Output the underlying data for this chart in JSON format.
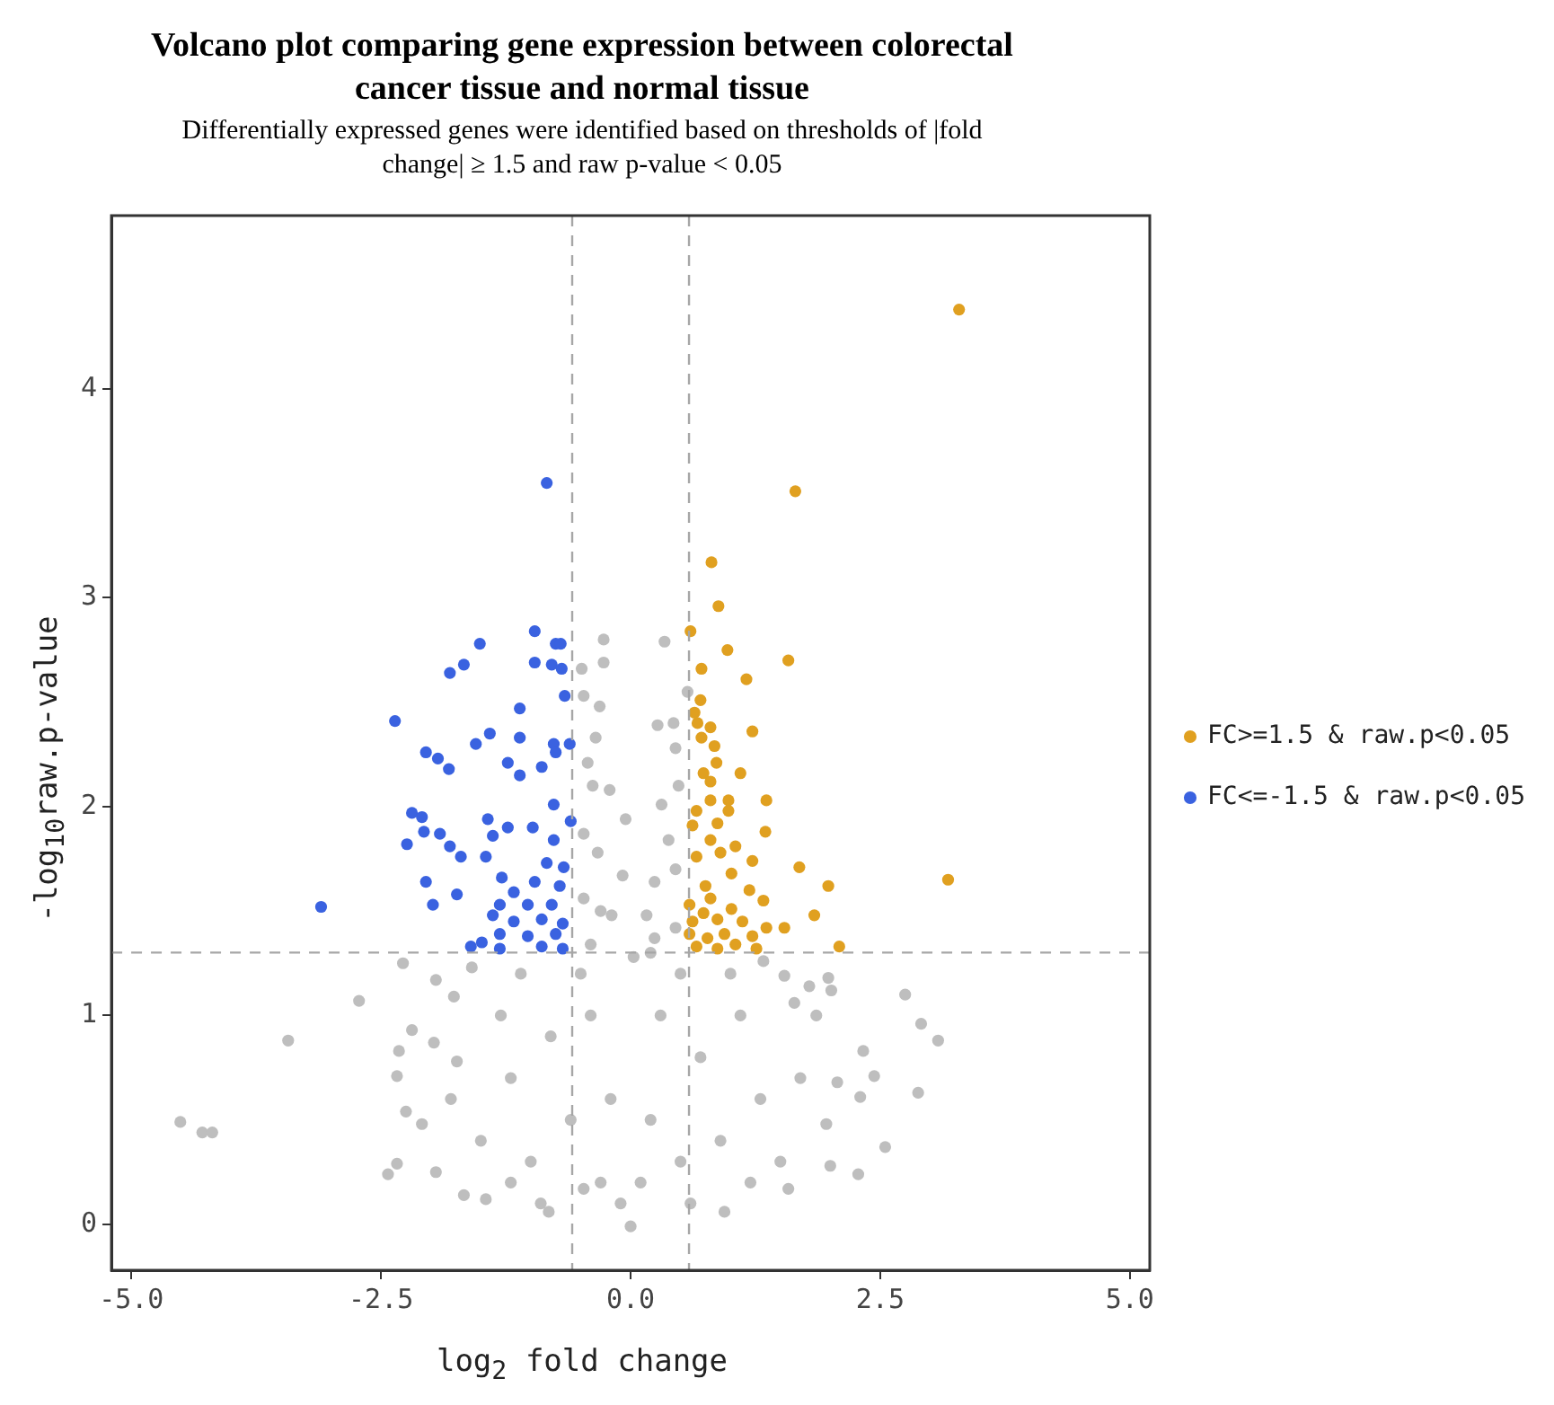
{
  "chart_data": {
    "type": "scatter",
    "title": "Volcano plot comparing gene expression between colorectal cancer tissue and normal tissue",
    "subtitle": "Differentially expressed genes were identified based on thresholds of |fold change| ≥ 1.5 and raw p-value < 0.05",
    "xlabel": "log$_{2}$ fold change",
    "ylabel": "-log$_{10}$raw.p-value",
    "xlim": [
      -5.2,
      5.2
    ],
    "ylim": [
      -0.22,
      4.83
    ],
    "xticks": [
      {
        "value": -5,
        "label": "-5.0"
      },
      {
        "value": -2.5,
        "label": "-2.5"
      },
      {
        "value": 0,
        "label": "0.0"
      },
      {
        "value": 2.5,
        "label": "2.5"
      },
      {
        "value": 5,
        "label": "5.0"
      }
    ],
    "yticks": [
      0,
      1,
      2,
      3,
      4
    ],
    "grid": false,
    "legend": "right",
    "marker": "circle",
    "ref_lines": [
      {
        "axis": "x",
        "value": -0.585,
        "color": "#a6a6a6",
        "line_style": "dashed"
      },
      {
        "axis": "x",
        "value": 0.585,
        "color": "#a6a6a6",
        "line_style": "dashed"
      },
      {
        "axis": "y",
        "value": 1.301,
        "color": "#a6a6a6",
        "line_style": "dashed"
      }
    ],
    "series": [
      {
        "color": "#bebebe",
        "x": [
          -4.51,
          -4.29,
          -4.19,
          -3.43,
          -2.72,
          -2.28,
          -2.19,
          -2.32,
          -2.34,
          -2.43,
          -2.34,
          -1.95,
          -2.25,
          -1.95,
          -1.59,
          -1.77,
          -1.97,
          -2.09,
          -1.74,
          -1.67,
          2.75,
          2.91,
          3.08,
          2.88,
          2.33,
          2.44,
          2.3,
          2.07,
          2.55,
          2.28,
          1.98,
          2.01,
          1.79,
          1.64,
          1.86,
          1.54,
          1.33,
          1.96,
          2.0,
          1.58,
          0.94,
          0.0,
          -0.82,
          -1.45,
          -0.47,
          -0.27,
          0.34,
          -0.49,
          -0.27,
          -0.47,
          -0.31,
          0.57,
          0.27,
          0.43,
          -0.35,
          -0.43,
          -0.38,
          -0.21,
          -0.05,
          0.45,
          0.48,
          0.31,
          0.38,
          -0.47,
          -0.33,
          -0.08,
          0.24,
          0.45,
          -0.47,
          -0.19,
          0.16,
          0.03,
          -0.4,
          0.24,
          0.45,
          -1.5,
          -1.2,
          -1.0,
          -0.8,
          -0.6,
          -0.4,
          -0.3,
          -0.2,
          0.2,
          0.3,
          0.5,
          0.7,
          0.9,
          1.1,
          1.3,
          1.5,
          -1.3,
          -1.8,
          1.7,
          0.1,
          -0.1,
          -0.9,
          0.6,
          1.2,
          -1.2,
          0.5,
          -0.5,
          -1.1,
          1.0,
          -0.3,
          0.2
        ],
        "values": [
          0.49,
          0.44,
          0.44,
          0.88,
          1.07,
          1.25,
          0.93,
          0.83,
          0.71,
          0.24,
          0.29,
          0.25,
          0.54,
          1.17,
          1.23,
          1.09,
          0.87,
          0.48,
          0.78,
          0.14,
          1.1,
          0.96,
          0.88,
          0.63,
          0.83,
          0.71,
          0.61,
          0.68,
          0.37,
          0.24,
          1.18,
          1.12,
          1.14,
          1.06,
          1.0,
          1.19,
          1.26,
          0.48,
          0.28,
          0.17,
          0.06,
          -0.01,
          0.06,
          0.12,
          0.17,
          2.8,
          2.79,
          2.66,
          2.69,
          2.53,
          2.48,
          2.55,
          2.39,
          2.4,
          2.33,
          2.21,
          2.1,
          2.08,
          1.94,
          2.28,
          2.1,
          2.01,
          1.84,
          1.87,
          1.78,
          1.67,
          1.64,
          1.7,
          1.56,
          1.48,
          1.48,
          1.28,
          1.34,
          1.37,
          1.42,
          0.4,
          0.7,
          0.3,
          0.9,
          0.5,
          1.0,
          0.2,
          0.6,
          0.5,
          1.0,
          0.3,
          0.8,
          0.4,
          1.0,
          0.6,
          0.3,
          1.0,
          0.6,
          0.7,
          0.2,
          0.1,
          0.1,
          0.1,
          0.2,
          0.2,
          1.2,
          1.2,
          1.2,
          1.2,
          1.5,
          1.3
        ]
      },
      {
        "name": "FC>=1.5 & raw.p<0.05",
        "color": "#e0a020",
        "x": [
          3.29,
          1.65,
          0.81,
          0.88,
          0.6,
          0.97,
          1.58,
          0.71,
          1.16,
          0.7,
          0.64,
          0.67,
          0.8,
          1.22,
          0.71,
          0.84,
          0.86,
          1.1,
          0.73,
          0.8,
          1.36,
          0.8,
          0.98,
          0.66,
          0.98,
          0.62,
          0.87,
          1.35,
          0.8,
          1.05,
          0.66,
          0.9,
          1.22,
          1.69,
          3.18,
          1.98,
          0.75,
          1.01,
          1.19,
          1.84,
          1.54,
          2.09,
          0.59,
          0.73,
          0.87,
          1.01,
          1.12,
          1.33,
          1.36,
          0.59,
          0.77,
          0.94,
          1.22,
          0.66,
          0.87,
          1.05,
          1.26,
          0.62,
          0.8
        ],
        "values": [
          4.38,
          3.51,
          3.17,
          2.96,
          2.84,
          2.75,
          2.7,
          2.66,
          2.61,
          2.51,
          2.45,
          2.4,
          2.38,
          2.36,
          2.33,
          2.29,
          2.21,
          2.16,
          2.16,
          2.12,
          2.03,
          2.03,
          2.03,
          1.98,
          1.98,
          1.91,
          1.92,
          1.88,
          1.84,
          1.81,
          1.76,
          1.78,
          1.74,
          1.71,
          1.65,
          1.62,
          1.62,
          1.68,
          1.6,
          1.48,
          1.42,
          1.33,
          1.53,
          1.49,
          1.46,
          1.51,
          1.45,
          1.55,
          1.42,
          1.39,
          1.37,
          1.39,
          1.38,
          1.33,
          1.32,
          1.34,
          1.32,
          1.45,
          1.56
        ]
      },
      {
        "name": "FC<=-1.5 & raw.p<0.05",
        "color": "#3a62e0",
        "x": [
          -0.84,
          -0.96,
          -0.75,
          -0.7,
          -1.51,
          -0.96,
          -0.79,
          -0.69,
          -1.67,
          -1.81,
          -0.66,
          -1.11,
          -2.36,
          -1.41,
          -1.11,
          -1.55,
          -0.77,
          -0.61,
          -2.05,
          -1.93,
          -1.82,
          -1.23,
          -0.89,
          -1.11,
          -0.75,
          -2.19,
          -2.09,
          -2.24,
          -2.07,
          -1.91,
          -1.81,
          -1.7,
          -1.43,
          -1.23,
          -1.38,
          -0.98,
          -0.77,
          -0.6,
          -0.77,
          -1.45,
          -0.84,
          -0.67,
          -2.05,
          -1.74,
          -1.98,
          -3.1,
          -1.29,
          -0.96,
          -0.71,
          -1.17,
          -1.31,
          -1.03,
          -0.79,
          -1.38,
          -1.17,
          -0.89,
          -0.68,
          -1.31,
          -1.03,
          -0.75,
          -1.6,
          -1.31,
          -0.89,
          -0.68,
          -1.49
        ],
        "values": [
          3.55,
          2.84,
          2.78,
          2.78,
          2.78,
          2.69,
          2.68,
          2.66,
          2.68,
          2.64,
          2.53,
          2.47,
          2.41,
          2.35,
          2.33,
          2.3,
          2.3,
          2.3,
          2.26,
          2.23,
          2.18,
          2.21,
          2.19,
          2.15,
          2.26,
          1.97,
          1.95,
          1.82,
          1.88,
          1.87,
          1.81,
          1.76,
          1.94,
          1.9,
          1.86,
          1.9,
          2.01,
          1.93,
          1.84,
          1.76,
          1.73,
          1.71,
          1.64,
          1.58,
          1.53,
          1.52,
          1.66,
          1.64,
          1.62,
          1.59,
          1.53,
          1.53,
          1.53,
          1.48,
          1.45,
          1.46,
          1.44,
          1.39,
          1.38,
          1.39,
          1.33,
          1.32,
          1.33,
          1.32,
          1.35
        ]
      }
    ]
  }
}
